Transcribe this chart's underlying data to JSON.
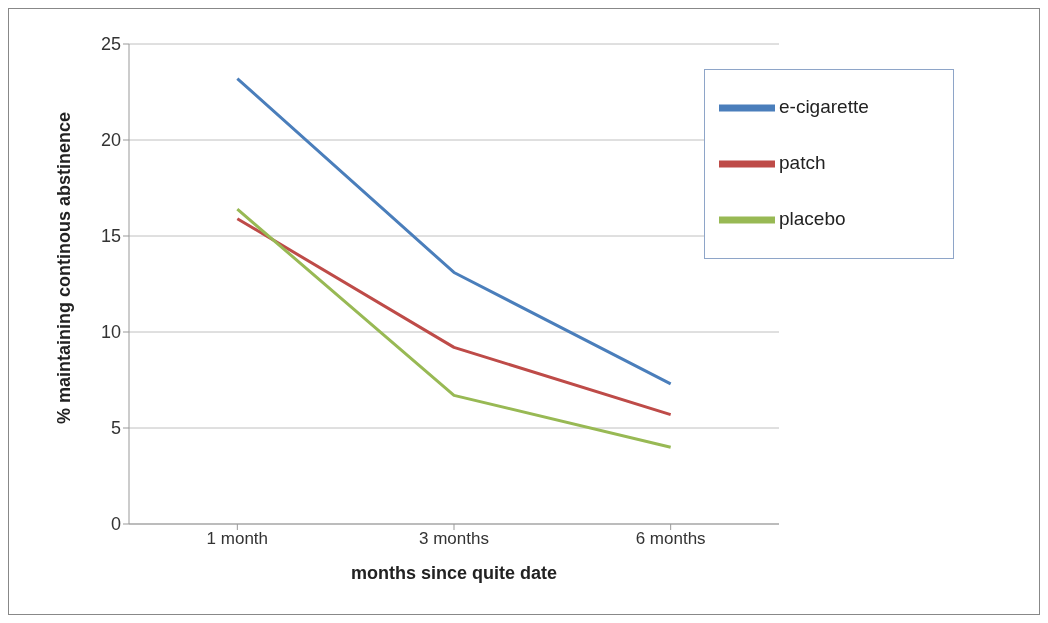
{
  "chart_data": {
    "type": "line",
    "xlabel": "months since quite date",
    "ylabel": "% maintaining continous abstinence",
    "categories": [
      "1 month",
      "3 months",
      "6 months"
    ],
    "series": [
      {
        "name": "e-cigarette",
        "color": "#4a7ebb",
        "values": [
          23.2,
          13.1,
          7.3
        ]
      },
      {
        "name": "patch",
        "color": "#be4b48",
        "values": [
          15.9,
          9.2,
          5.7
        ]
      },
      {
        "name": "placebo",
        "color": "#98b954",
        "values": [
          16.4,
          6.7,
          4.0
        ]
      }
    ],
    "ylim": [
      0,
      25
    ],
    "yticks": [
      0,
      5,
      10,
      15,
      20,
      25
    ],
    "grid": "y",
    "legend": "top right",
    "marker": "none",
    "line_style": "solid"
  }
}
